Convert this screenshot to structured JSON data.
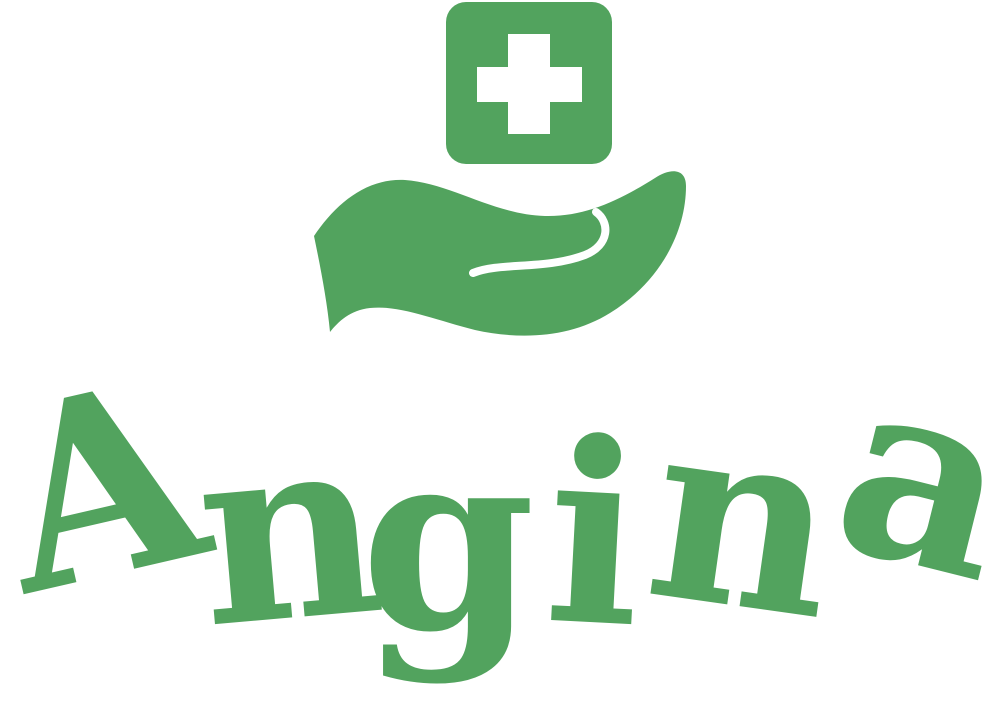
{
  "logo": {
    "wordmark": "Angina",
    "brand_color": "#52A35E",
    "background_color": "#FFFFFF",
    "icons": {
      "emblem": "hand-holding-medical-cross-icon",
      "cross": "plus-cross-icon",
      "hand": "open-palm-hand-icon"
    }
  }
}
